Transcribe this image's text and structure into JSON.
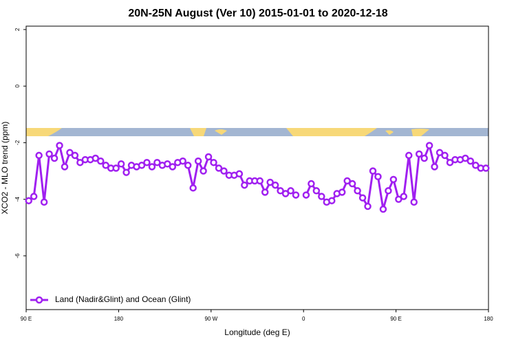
{
  "chart_data": {
    "type": "line",
    "title": "20N-25N August (Ver 10)   2015-01-01 to 2020-12-18",
    "x_label": "Longitude (deg E)",
    "y_label": "XCO2 - MLO trend (ppm)",
    "xlim": [
      90,
      540
    ],
    "ylim": [
      -7.9,
      2.12
    ],
    "xticks": [
      {
        "value": 90,
        "label": "90 E"
      },
      {
        "value": 180,
        "label": "180"
      },
      {
        "value": 270,
        "label": "90 W"
      },
      {
        "value": 360,
        "label": "0"
      },
      {
        "value": 450,
        "label": "90 E"
      },
      {
        "value": 540,
        "label": "180"
      }
    ],
    "yticks": [
      2,
      0,
      -2,
      -4,
      -6
    ],
    "legend": "bottomleft",
    "x": [
      92.5,
      97.5,
      102.5,
      107.5,
      112.5,
      117.5,
      122.5,
      127.5,
      132.5,
      137.5,
      142.5,
      147.5,
      152.5,
      157.5,
      162.5,
      167.5,
      172.5,
      177.5,
      182.5,
      187.5,
      192.5,
      197.5,
      202.5,
      207.5,
      212.5,
      217.5,
      222.5,
      227.5,
      232.5,
      237.5,
      242.5,
      247.5,
      252.5,
      257.5,
      262.5,
      267.5,
      272.5,
      277.5,
      282.5,
      287.5,
      292.5,
      297.5,
      302.5,
      307.5,
      312.5,
      317.5,
      322.5,
      327.5,
      332.5,
      337.5,
      342.5,
      347.5,
      352.5,
      357.5,
      362.5,
      367.5,
      372.5,
      377.5,
      382.5,
      387.5,
      392.5,
      397.5,
      402.5,
      407.5,
      412.5,
      417.5,
      422.5,
      427.5,
      432.5,
      437.5,
      442.5,
      447.5,
      452.5,
      457.5,
      462.5,
      467.5,
      472.5,
      477.5,
      482.5,
      487.5,
      492.5,
      497.5,
      502.5,
      507.5,
      512.5,
      517.5,
      522.5,
      527.5,
      532.5,
      537.5
    ],
    "series": [
      {
        "name": "Land (Nadir&Glint) and Ocean (Glint)",
        "color": "#a020f0",
        "values": [
          -4.05,
          -3.9,
          -2.45,
          -4.1,
          -2.4,
          -2.55,
          -2.1,
          -2.85,
          -2.35,
          -2.45,
          -2.7,
          -2.6,
          -2.6,
          -2.55,
          -2.65,
          -2.8,
          -2.9,
          -2.9,
          -2.75,
          -3.05,
          -2.8,
          -2.85,
          -2.8,
          -2.7,
          -2.85,
          -2.7,
          -2.8,
          -2.75,
          -2.85,
          -2.7,
          -2.65,
          -2.8,
          -3.6,
          -2.65,
          -3.0,
          -2.5,
          -2.7,
          -2.9,
          -3.0,
          -3.15,
          -3.15,
          -3.1,
          -3.5,
          -3.35,
          -3.35,
          -3.35,
          -3.75,
          -3.4,
          -3.5,
          -3.7,
          -3.8,
          -3.7,
          -3.85,
          null,
          -3.85,
          -3.45,
          -3.7,
          -3.9,
          -4.1,
          -4.05,
          -3.8,
          -3.75,
          -3.35,
          -3.45,
          -3.7,
          -3.95,
          -4.25,
          -3.0,
          -3.2,
          -4.35,
          -3.7,
          -3.3,
          -4.0,
          -3.9,
          -2.45,
          -4.1,
          -2.4,
          -2.55,
          -2.1,
          -2.85,
          -2.35,
          -2.45,
          -2.7,
          -2.6,
          -2.6,
          -2.55,
          -2.65,
          -2.8,
          -2.9,
          -2.9
        ]
      }
    ]
  }
}
